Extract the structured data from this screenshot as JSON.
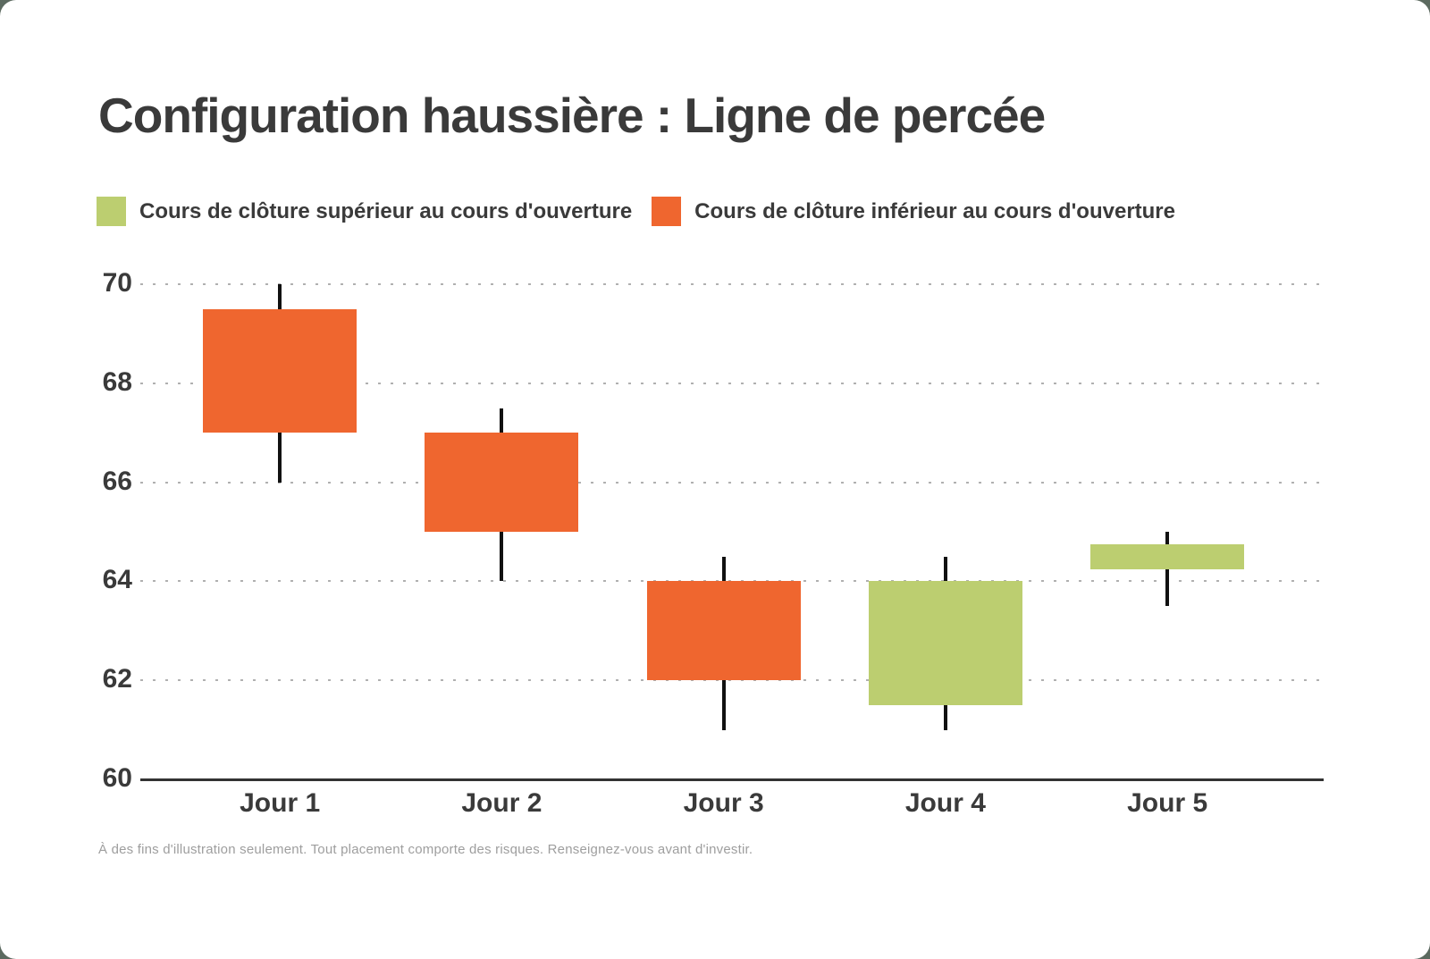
{
  "page": {
    "title": "Configuration haussière : Ligne de percée",
    "footnote": "À des fins d'illustration seulement. Tout placement comporte des risques. Renseignez-vous avant d'investir."
  },
  "legend": {
    "items": [
      {
        "label": "Cours de clôture supérieur au cours d'ouverture",
        "color": "#bcce70",
        "meaning": "bullish"
      },
      {
        "label": "Cours de clôture inférieur au cours d'ouverture",
        "color": "#ef662f",
        "meaning": "bearish"
      }
    ]
  },
  "chart_data": {
    "type": "candlestick",
    "title": "Configuration haussière : Ligne de percée",
    "categories": [
      "Jour 1",
      "Jour 2",
      "Jour 3",
      "Jour 4",
      "Jour 5"
    ],
    "series": [
      {
        "name": "Jour 1",
        "open": 69.5,
        "high": 70,
        "low": 66,
        "close": 67,
        "direction": "bearish"
      },
      {
        "name": "Jour 2",
        "open": 67,
        "high": 67.5,
        "low": 64,
        "close": 65,
        "direction": "bearish"
      },
      {
        "name": "Jour 3",
        "open": 64,
        "high": 64.5,
        "low": 61,
        "close": 62,
        "direction": "bearish"
      },
      {
        "name": "Jour 4",
        "open": 61.5,
        "high": 64.5,
        "low": 61,
        "close": 64,
        "direction": "bullish"
      },
      {
        "name": "Jour 5",
        "open": 64.25,
        "high": 65,
        "low": 63.5,
        "close": 64.75,
        "direction": "bullish"
      }
    ],
    "y_axis": {
      "ticks": [
        70,
        68,
        66,
        64,
        62,
        60
      ],
      "min": 60,
      "max": 70
    },
    "colors": {
      "bullish": "#bcce70",
      "bearish": "#ef662f"
    },
    "grid": "horizontal dotted, solid baseline at 60",
    "legend_position": "top-left"
  }
}
